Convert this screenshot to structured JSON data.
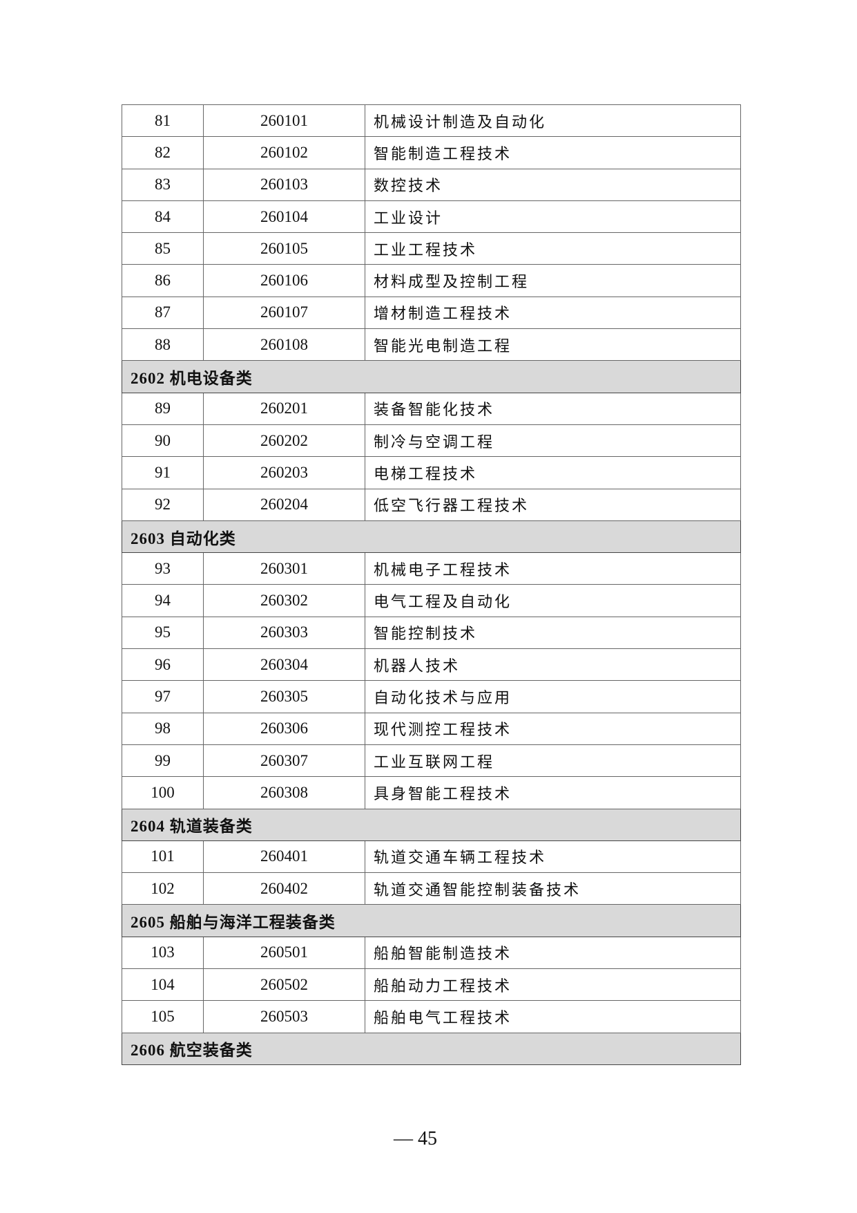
{
  "rows": [
    {
      "type": "item",
      "num": "81",
      "code": "260101",
      "name": "机械设计制造及自动化"
    },
    {
      "type": "item",
      "num": "82",
      "code": "260102",
      "name": "智能制造工程技术"
    },
    {
      "type": "item",
      "num": "83",
      "code": "260103",
      "name": "数控技术"
    },
    {
      "type": "item",
      "num": "84",
      "code": "260104",
      "name": "工业设计"
    },
    {
      "type": "item",
      "num": "85",
      "code": "260105",
      "name": "工业工程技术"
    },
    {
      "type": "item",
      "num": "86",
      "code": "260106",
      "name": "材料成型及控制工程"
    },
    {
      "type": "item",
      "num": "87",
      "code": "260107",
      "name": "增材制造工程技术"
    },
    {
      "type": "item",
      "num": "88",
      "code": "260108",
      "name": "智能光电制造工程"
    },
    {
      "type": "category",
      "label": "2602 机电设备类"
    },
    {
      "type": "item",
      "num": "89",
      "code": "260201",
      "name": "装备智能化技术"
    },
    {
      "type": "item",
      "num": "90",
      "code": "260202",
      "name": "制冷与空调工程"
    },
    {
      "type": "item",
      "num": "91",
      "code": "260203",
      "name": "电梯工程技术"
    },
    {
      "type": "item",
      "num": "92",
      "code": "260204",
      "name": "低空飞行器工程技术"
    },
    {
      "type": "category",
      "label": "2603 自动化类"
    },
    {
      "type": "item",
      "num": "93",
      "code": "260301",
      "name": "机械电子工程技术"
    },
    {
      "type": "item",
      "num": "94",
      "code": "260302",
      "name": "电气工程及自动化"
    },
    {
      "type": "item",
      "num": "95",
      "code": "260303",
      "name": "智能控制技术"
    },
    {
      "type": "item",
      "num": "96",
      "code": "260304",
      "name": "机器人技术"
    },
    {
      "type": "item",
      "num": "97",
      "code": "260305",
      "name": "自动化技术与应用"
    },
    {
      "type": "item",
      "num": "98",
      "code": "260306",
      "name": "现代测控工程技术"
    },
    {
      "type": "item",
      "num": "99",
      "code": "260307",
      "name": "工业互联网工程"
    },
    {
      "type": "item",
      "num": "100",
      "code": "260308",
      "name": "具身智能工程技术"
    },
    {
      "type": "category",
      "label": "2604 轨道装备类"
    },
    {
      "type": "item",
      "num": "101",
      "code": "260401",
      "name": "轨道交通车辆工程技术"
    },
    {
      "type": "item",
      "num": "102",
      "code": "260402",
      "name": "轨道交通智能控制装备技术"
    },
    {
      "type": "category",
      "label": "2605 船舶与海洋工程装备类"
    },
    {
      "type": "item",
      "num": "103",
      "code": "260501",
      "name": "船舶智能制造技术"
    },
    {
      "type": "item",
      "num": "104",
      "code": "260502",
      "name": "船舶动力工程技术"
    },
    {
      "type": "item",
      "num": "105",
      "code": "260503",
      "name": "船舶电气工程技术"
    },
    {
      "type": "category",
      "label": "2606 航空装备类"
    }
  ],
  "footer": {
    "page": "— 45"
  }
}
